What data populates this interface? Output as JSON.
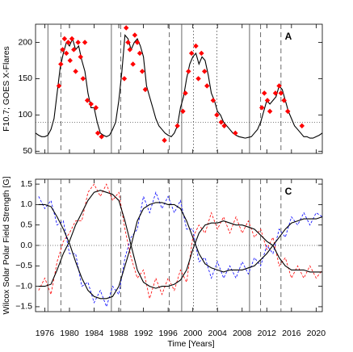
{
  "chart_data": [
    {
      "type": "line",
      "label": "A",
      "ylabel": "F10.7; GOES X-Flares",
      "xlim": [
        1974.5,
        2021
      ],
      "ylim": [
        47,
        225
      ],
      "yticks": [
        50,
        100,
        150,
        200
      ],
      "hline": 90,
      "vlines": [
        {
          "x": 1976.5,
          "style": "solid"
        },
        {
          "x": 1986.8,
          "style": "solid"
        },
        {
          "x": 1998.2,
          "style": "solid"
        },
        {
          "x": 2009.2,
          "style": "solid"
        },
        {
          "x": 1978.6,
          "style": "dashed"
        },
        {
          "x": 1988.3,
          "style": "dashed"
        },
        {
          "x": 1996.2,
          "style": "dashed"
        },
        {
          "x": 2011.0,
          "style": "dashed"
        },
        {
          "x": 2014.3,
          "style": "dashed"
        },
        {
          "x": 2000.1,
          "style": "dotted"
        },
        {
          "x": 2003.9,
          "style": "dotted"
        }
      ],
      "series": [
        {
          "color": "#000000",
          "style": "line",
          "x": [
            1974.5,
            1975,
            1975.5,
            1976,
            1976.5,
            1977,
            1977.5,
            1978,
            1978.5,
            1979,
            1979.5,
            1980,
            1980.5,
            1981,
            1981.5,
            1982,
            1982.5,
            1983,
            1983.5,
            1984,
            1984.5,
            1985,
            1985.5,
            1986,
            1986.5,
            1987,
            1987.5,
            1988,
            1988.5,
            1989,
            1989.5,
            1990,
            1990.5,
            1991,
            1991.5,
            1992,
            1992.5,
            1993,
            1993.5,
            1994,
            1994.5,
            1995,
            1995.5,
            1996,
            1996.5,
            1997,
            1997.5,
            1998,
            1998.5,
            1999,
            1999.5,
            2000,
            2000.5,
            2001,
            2001.5,
            2002,
            2002.5,
            2003,
            2003.5,
            2004,
            2004.5,
            2005,
            2005.5,
            2006,
            2006.5,
            2007,
            2007.5,
            2008,
            2008.5,
            2009,
            2009.5,
            2010,
            2010.5,
            2011,
            2011.5,
            2012,
            2012.5,
            2013,
            2013.5,
            2014,
            2014.5,
            2015,
            2015.5,
            2016,
            2016.5,
            2017,
            2017.5,
            2018,
            2018.5,
            2019,
            2019.5,
            2020,
            2020.5,
            2021
          ],
          "values": [
            75,
            72,
            70,
            70,
            72,
            80,
            95,
            130,
            165,
            185,
            200,
            195,
            205,
            190,
            195,
            175,
            160,
            130,
            110,
            110,
            90,
            75,
            72,
            70,
            72,
            80,
            90,
            120,
            160,
            210,
            205,
            190,
            200,
            205,
            195,
            180,
            140,
            125,
            110,
            95,
            85,
            80,
            75,
            72,
            70,
            75,
            85,
            110,
            125,
            150,
            170,
            180,
            185,
            170,
            180,
            175,
            155,
            130,
            120,
            105,
            100,
            90,
            85,
            80,
            75,
            72,
            70,
            69,
            68,
            69,
            70,
            75,
            80,
            90,
            105,
            120,
            115,
            120,
            125,
            140,
            135,
            120,
            105,
            95,
            85,
            80,
            75,
            70,
            70,
            68,
            68,
            70,
            72,
            75
          ]
        },
        {
          "color": "#ff0000",
          "style": "points",
          "x": [
            1978.3,
            1978.6,
            1978.9,
            1979.2,
            1979.5,
            1979.8,
            1980.1,
            1980.4,
            1980.7,
            1981.0,
            1981.4,
            1981.8,
            1982.2,
            1982.5,
            1982.9,
            1983.5,
            1984.3,
            1984.6,
            1985.2,
            1988.9,
            1989.2,
            1989.5,
            1989.8,
            1990.3,
            1990.6,
            1991.0,
            1991.4,
            1991.8,
            1992.3,
            1995.4,
            1997.5,
            1998.4,
            1998.8,
            1999.3,
            1999.8,
            2000.5,
            2000.9,
            2001.4,
            2001.9,
            2002.3,
            2003.3,
            2003.9,
            2004.6,
            2005.1,
            2006.9,
            2011.2,
            2011.6,
            2012.1,
            2012.5,
            2013.4,
            2014.0,
            2014.3,
            2014.8,
            2015.4,
            2017.7
          ],
          "values": [
            140,
            170,
            190,
            205,
            185,
            200,
            175,
            205,
            190,
            160,
            200,
            180,
            150,
            200,
            120,
            115,
            110,
            75,
            70,
            150,
            220,
            200,
            190,
            170,
            210,
            200,
            185,
            160,
            135,
            65,
            85,
            105,
            130,
            160,
            185,
            195,
            150,
            185,
            160,
            140,
            120,
            100,
            90,
            85,
            75,
            110,
            130,
            120,
            105,
            130,
            140,
            130,
            120,
            105,
            85
          ]
        }
      ]
    },
    {
      "type": "line",
      "label": "C",
      "ylabel": "Wilcox Solar Polar Field Strength [G]",
      "xlabel": "Time [Years]",
      "xlim": [
        1974.5,
        2021
      ],
      "ylim": [
        -1.62,
        1.62
      ],
      "xticks": [
        1976,
        1980,
        1984,
        1988,
        1992,
        1996,
        2000,
        2004,
        2008,
        2012,
        2016,
        2020
      ],
      "yticks": [
        -1.5,
        -1.0,
        -0.5,
        0.0,
        0.5,
        1.0,
        1.5
      ],
      "ytick_labels": [
        "−1.5",
        "−1.0",
        "−0.5",
        "0.0",
        "0.5",
        "1.0",
        "1.5"
      ],
      "hline": 0,
      "series": [
        {
          "color": "#ff0000",
          "style": "dashed",
          "x": [
            1975,
            1976,
            1977,
            1978,
            1979,
            1980,
            1981,
            1982,
            1983,
            1984,
            1985,
            1986,
            1987,
            1988,
            1989,
            1990,
            1991,
            1992,
            1993,
            1994,
            1995,
            1996,
            1997,
            1998,
            1999,
            2000,
            2001,
            2002,
            2003,
            2004,
            2005,
            2006,
            2007,
            2008,
            2009,
            2010,
            2011,
            2012,
            2013,
            2014,
            2015,
            2016,
            2017,
            2018,
            2019,
            2020,
            2021
          ],
          "values": [
            -1.1,
            -0.8,
            -1.2,
            -0.4,
            0.1,
            0.3,
            0.6,
            0.6,
            1.3,
            1.5,
            1.2,
            1.5,
            1.1,
            1.3,
            0.4,
            -0.3,
            -0.8,
            -0.6,
            -1.3,
            -0.8,
            -1.2,
            -0.8,
            -1.1,
            -0.6,
            -0.9,
            0.2,
            0.5,
            0.3,
            0.8,
            0.4,
            0.7,
            0.3,
            0.7,
            0.3,
            0.6,
            0.2,
            0.4,
            -0.1,
            0.2,
            -0.5,
            -0.3,
            -0.8,
            -0.5,
            -0.8,
            -0.5,
            -0.8,
            -0.6
          ]
        },
        {
          "color": "#0000ff",
          "style": "dashed",
          "x": [
            1975,
            1976,
            1977,
            1978,
            1979,
            1980,
            1981,
            1982,
            1983,
            1984,
            1985,
            1986,
            1987,
            1988,
            1989,
            1990,
            1991,
            1992,
            1993,
            1994,
            1995,
            1996,
            1997,
            1998,
            1999,
            2000,
            2001,
            2002,
            2003,
            2004,
            2005,
            2006,
            2007,
            2008,
            2009,
            2010,
            2011,
            2012,
            2013,
            2014,
            2015,
            2016,
            2017,
            2018,
            2019,
            2020,
            2021
          ],
          "values": [
            1.2,
            0.9,
            1.1,
            0.5,
            0.6,
            -0.2,
            -0.2,
            -1.0,
            -0.9,
            -1.4,
            -1.1,
            -1.5,
            -1.0,
            -1.2,
            -0.3,
            0.2,
            0.4,
            1.2,
            0.8,
            1.3,
            0.9,
            1.2,
            0.8,
            1.1,
            0.4,
            0.4,
            -0.4,
            -0.3,
            -0.8,
            -0.4,
            -0.8,
            -0.5,
            -0.8,
            -0.4,
            -0.7,
            -0.3,
            -0.5,
            0.0,
            -0.2,
            0.4,
            0.2,
            0.7,
            0.5,
            0.8,
            0.5,
            0.8,
            0.7
          ]
        },
        {
          "color": "#000000",
          "style": "line",
          "x": [
            1975,
            1976,
            1977,
            1978,
            1979,
            1980,
            1981,
            1982,
            1983,
            1984,
            1985,
            1986,
            1987,
            1988,
            1989,
            1990,
            1991,
            1992,
            1993,
            1994,
            1995,
            1996,
            1997,
            1998,
            1999,
            2000,
            2001,
            2002,
            2003,
            2004,
            2005,
            2006,
            2007,
            2008,
            2009,
            2010,
            2011,
            2012,
            2013,
            2014,
            2015,
            2016,
            2017,
            2018,
            2019,
            2020,
            2021
          ],
          "values": [
            1.0,
            1.0,
            0.95,
            0.7,
            0.4,
            0.05,
            -0.4,
            -0.8,
            -1.1,
            -1.25,
            -1.3,
            -1.3,
            -1.25,
            -1.0,
            -0.5,
            0.0,
            0.6,
            0.9,
            1.0,
            1.05,
            1.05,
            1.0,
            1.0,
            0.9,
            0.6,
            0.2,
            -0.2,
            -0.45,
            -0.55,
            -0.6,
            -0.65,
            -0.6,
            -0.6,
            -0.6,
            -0.55,
            -0.5,
            -0.35,
            -0.2,
            0.0,
            0.2,
            0.4,
            0.55,
            0.6,
            0.65,
            0.65,
            0.65,
            0.7
          ]
        },
        {
          "color": "#000000",
          "style": "line",
          "x": [
            1975,
            1976,
            1977,
            1978,
            1979,
            1980,
            1981,
            1982,
            1983,
            1984,
            1985,
            1986,
            1987,
            1988,
            1989,
            1990,
            1991,
            1992,
            1993,
            1994,
            1995,
            1996,
            1997,
            1998,
            1999,
            2000,
            2001,
            2002,
            2003,
            2004,
            2005,
            2006,
            2007,
            2008,
            2009,
            2010,
            2011,
            2012,
            2013,
            2014,
            2015,
            2016,
            2017,
            2018,
            2019,
            2020,
            2021
          ],
          "values": [
            -1.0,
            -1.0,
            -0.95,
            -0.6,
            -0.2,
            0.1,
            0.5,
            0.8,
            1.1,
            1.3,
            1.35,
            1.3,
            1.25,
            1.1,
            0.6,
            0.0,
            -0.6,
            -0.9,
            -1.0,
            -1.05,
            -1.0,
            -1.0,
            -0.95,
            -0.85,
            -0.6,
            -0.1,
            0.3,
            0.5,
            0.55,
            0.55,
            0.6,
            0.55,
            0.5,
            0.5,
            0.45,
            0.4,
            0.25,
            0.1,
            0.0,
            -0.3,
            -0.5,
            -0.6,
            -0.6,
            -0.6,
            -0.65,
            -0.65,
            -0.65
          ]
        }
      ]
    }
  ]
}
